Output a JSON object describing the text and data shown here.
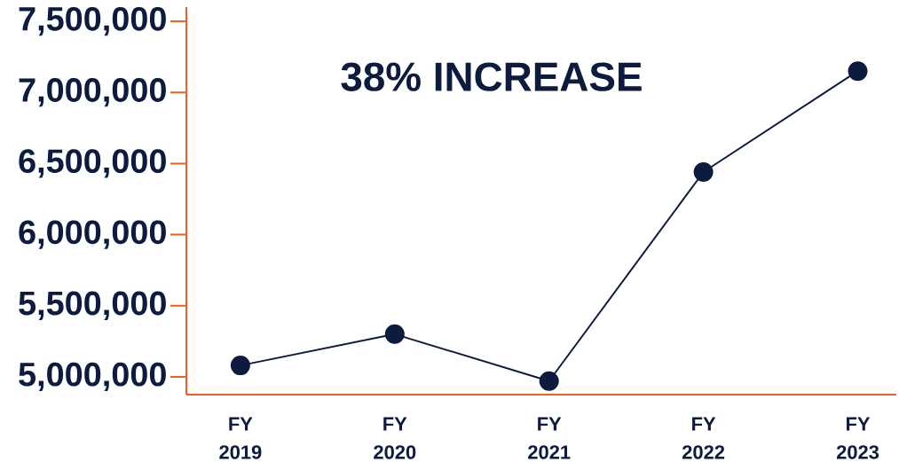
{
  "chart_data": {
    "type": "line",
    "categories": [
      "FY 2019",
      "FY 2020",
      "FY 2021",
      "FY 2022",
      "FY 2023"
    ],
    "series": [
      {
        "color": "#0d1b3e",
        "values": [
          5080000,
          5300000,
          4970000,
          6440000,
          7150000
        ]
      }
    ],
    "ylim": [
      4875000,
      7600000
    ],
    "yticks": [
      {
        "value": 5000000,
        "label": "5,000,000"
      },
      {
        "value": 5500000,
        "label": "5,500,000"
      },
      {
        "value": 6000000,
        "label": "6,000,000"
      },
      {
        "value": 6500000,
        "label": "6,500,000"
      },
      {
        "value": 7000000,
        "label": "7,000,000"
      },
      {
        "value": 7500000,
        "label": "7,500,000"
      }
    ],
    "annotations": [
      "38% INCREASE"
    ],
    "marker": "circle",
    "line_style": "solid"
  }
}
